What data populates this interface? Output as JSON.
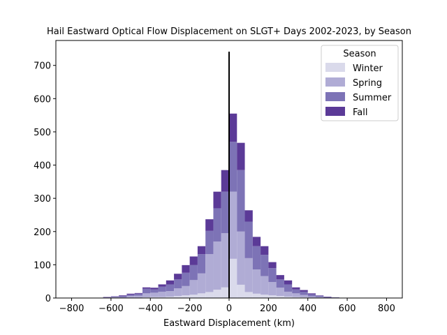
{
  "chart_data": {
    "type": "bar",
    "stacked": true,
    "title": "Hail Eastward Optical Flow Displacement on SLGT+ Days 2002-2023, by Season",
    "xlabel": "Eastward Displacement (km)",
    "ylabel": "",
    "xlim": [
      -880,
      880
    ],
    "ylim": [
      0,
      775
    ],
    "xticks": [
      -800,
      -600,
      -400,
      -200,
      0,
      200,
      400,
      600,
      800
    ],
    "yticks": [
      0,
      100,
      200,
      300,
      400,
      500,
      600,
      700
    ],
    "bin_width": 40,
    "legend": {
      "title": "Season",
      "placement": "top-right"
    },
    "reference_line_x": 0,
    "bin_centers": [
      -780,
      -740,
      -700,
      -660,
      -620,
      -580,
      -540,
      -500,
      -460,
      -420,
      -380,
      -340,
      -300,
      -260,
      -220,
      -180,
      -140,
      -100,
      -60,
      -20,
      20,
      60,
      100,
      140,
      180,
      220,
      260,
      300,
      340,
      380,
      420,
      460,
      500,
      540,
      580,
      620,
      660,
      700,
      740,
      780
    ],
    "series": [
      {
        "name": "Winter",
        "color": "#dadaeb",
        "values": [
          0,
          0,
          0,
          0,
          0,
          0,
          0,
          1,
          1,
          2,
          3,
          3,
          4,
          6,
          8,
          10,
          14,
          18,
          25,
          32,
          118,
          40,
          18,
          13,
          10,
          8,
          6,
          4,
          3,
          2,
          1,
          1,
          0,
          0,
          0,
          0,
          0,
          0,
          0,
          0
        ]
      },
      {
        "name": "Spring",
        "color": "#b0acd5",
        "values": [
          0,
          0,
          1,
          0,
          1,
          2,
          2,
          5,
          6,
          12,
          13,
          16,
          17,
          23,
          28,
          44,
          60,
          114,
          145,
          163,
          202,
          160,
          102,
          73,
          56,
          40,
          25,
          15,
          11,
          7,
          4,
          2,
          1,
          1,
          0,
          0,
          0,
          0,
          0,
          0
        ]
      },
      {
        "name": "Summer",
        "color": "#7d73b6",
        "values": [
          0,
          1,
          0,
          1,
          1,
          2,
          4,
          4,
          6,
          14,
          10,
          15,
          20,
          27,
          40,
          45,
          58,
          70,
          100,
          125,
          150,
          185,
          110,
          70,
          64,
          42,
          25,
          22,
          12,
          10,
          6,
          4,
          2,
          1,
          1,
          0,
          0,
          0,
          0,
          0
        ]
      },
      {
        "name": "Fall",
        "color": "#5b3a97",
        "values": [
          0,
          0,
          0,
          0,
          1,
          1,
          2,
          3,
          2,
          4,
          5,
          7,
          12,
          17,
          23,
          26,
          24,
          35,
          50,
          65,
          85,
          82,
          34,
          28,
          26,
          18,
          13,
          12,
          6,
          5,
          3,
          1,
          1,
          0,
          0,
          0,
          0,
          0,
          0,
          0
        ]
      }
    ]
  }
}
